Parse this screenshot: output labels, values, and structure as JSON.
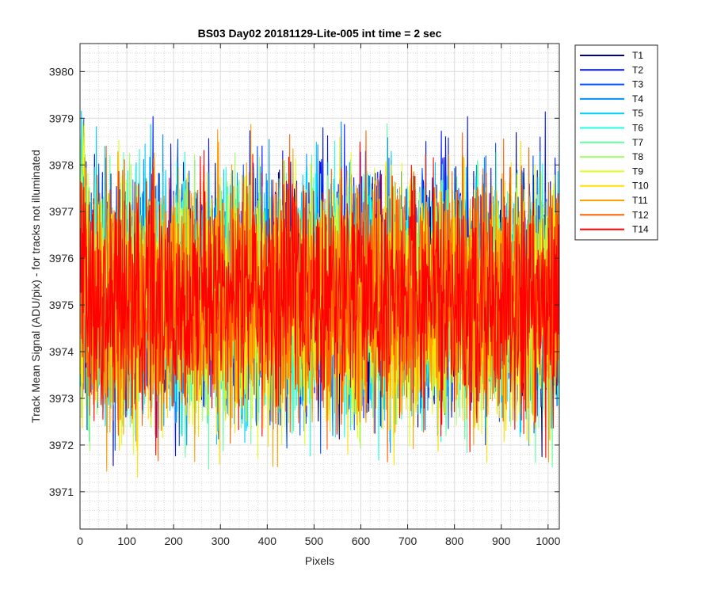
{
  "chart_data": {
    "type": "line",
    "title": "BS03 Day02 20181129-Lite-005 int time = 2 sec",
    "xlabel": "Pixels",
    "ylabel": "Track Mean Signal (ADU/pix) - for tracks not illuminated",
    "xlim": [
      0,
      1024
    ],
    "ylim": [
      3970.2,
      3980.6
    ],
    "x_ticks": [
      0,
      100,
      200,
      300,
      400,
      500,
      600,
      700,
      800,
      900,
      1000
    ],
    "y_ticks": [
      3971,
      3972,
      3973,
      3974,
      3975,
      3976,
      3977,
      3978,
      3979,
      3980
    ],
    "grid": "major and minor",
    "legend_placement": "outside-top-right",
    "series": [
      {
        "name": "T1",
        "color": "#00008f",
        "center": 3975.2,
        "spread": 1.25
      },
      {
        "name": "T2",
        "color": "#0010ff",
        "center": 3975.4,
        "spread": 1.3
      },
      {
        "name": "T3",
        "color": "#0050ff",
        "center": 3975.3,
        "spread": 1.3
      },
      {
        "name": "T4",
        "color": "#0090ff",
        "center": 3975.3,
        "spread": 1.25
      },
      {
        "name": "T5",
        "color": "#00d0ff",
        "center": 3975.2,
        "spread": 1.3
      },
      {
        "name": "T6",
        "color": "#20ffdf",
        "center": 3975.1,
        "spread": 1.25
      },
      {
        "name": "T7",
        "color": "#60ff9f",
        "center": 3975.0,
        "spread": 1.25
      },
      {
        "name": "T8",
        "color": "#9fff60",
        "center": 3975.1,
        "spread": 1.2
      },
      {
        "name": "T9",
        "color": "#dfff20",
        "center": 3975.0,
        "spread": 1.25
      },
      {
        "name": "T10",
        "color": "#ffe000",
        "center": 3975.0,
        "spread": 1.3
      },
      {
        "name": "T11",
        "color": "#ffa000",
        "center": 3975.1,
        "spread": 1.3
      },
      {
        "name": "T12",
        "color": "#ff6000",
        "center": 3975.2,
        "spread": 1.3
      },
      {
        "name": "T14",
        "color": "#ff0000",
        "center": 3975.1,
        "spread": 1.2
      }
    ],
    "n_points": 1024
  }
}
